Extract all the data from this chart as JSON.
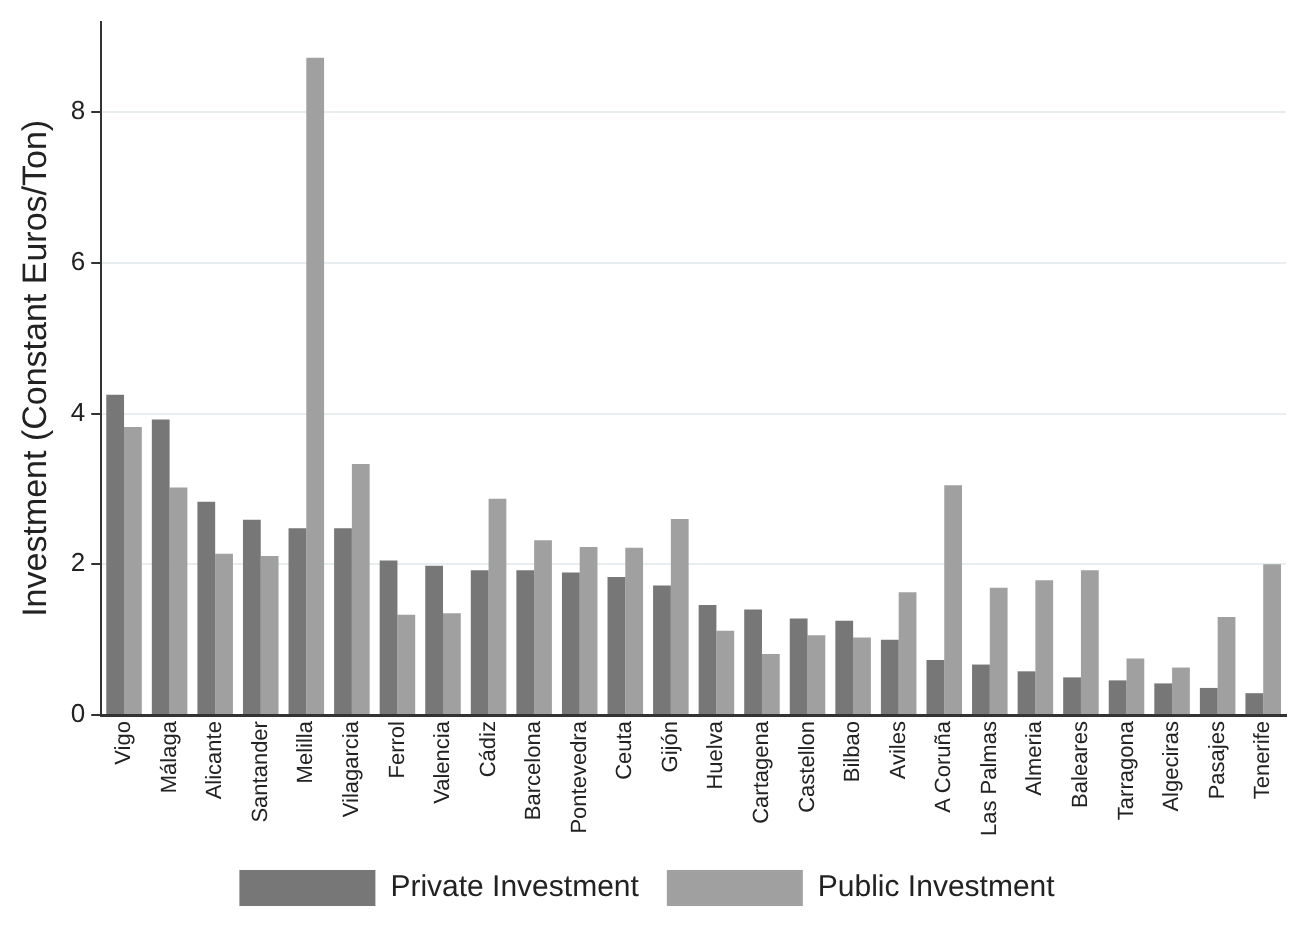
{
  "chart_data": {
    "type": "bar",
    "ylabel": "Investment (Constant Euros/Ton)",
    "categories": [
      "Vigo",
      "Málaga",
      "Alicante",
      "Santander",
      "Melilla",
      "Vilagarcia",
      "Ferrol",
      "Valencia",
      "Cádiz",
      "Barcelona",
      "Pontevedra",
      "Ceuta",
      "Gijón",
      "Huelva",
      "Cartagena",
      "Castellon",
      "Bilbao",
      "Aviles",
      "A Coruña",
      "Las Palmas",
      "Almeria",
      "Baleares",
      "Tarragona",
      "Algeciras",
      "Pasajes",
      "Tenerife"
    ],
    "series": [
      {
        "name": "Private Investment",
        "color": "#777777",
        "values": [
          4.25,
          3.92,
          2.83,
          2.59,
          2.48,
          2.48,
          2.05,
          1.98,
          1.92,
          1.92,
          1.89,
          1.83,
          1.72,
          1.46,
          1.4,
          1.28,
          1.25,
          1.0,
          0.73,
          0.67,
          0.58,
          0.5,
          0.46,
          0.42,
          0.36,
          0.29
        ]
      },
      {
        "name": "Public Investment",
        "color": "#a0a0a0",
        "values": [
          3.82,
          3.02,
          2.14,
          2.11,
          8.72,
          3.33,
          1.33,
          1.35,
          2.87,
          2.32,
          2.23,
          2.22,
          2.6,
          1.12,
          0.81,
          1.06,
          1.03,
          1.63,
          3.05,
          1.69,
          1.79,
          1.92,
          0.75,
          0.63,
          1.3,
          2.0
        ]
      }
    ],
    "ylim": [
      0,
      9.2
    ],
    "yticks": [
      0,
      2,
      4,
      6,
      8
    ],
    "grid": "y",
    "legend": "bottom"
  }
}
